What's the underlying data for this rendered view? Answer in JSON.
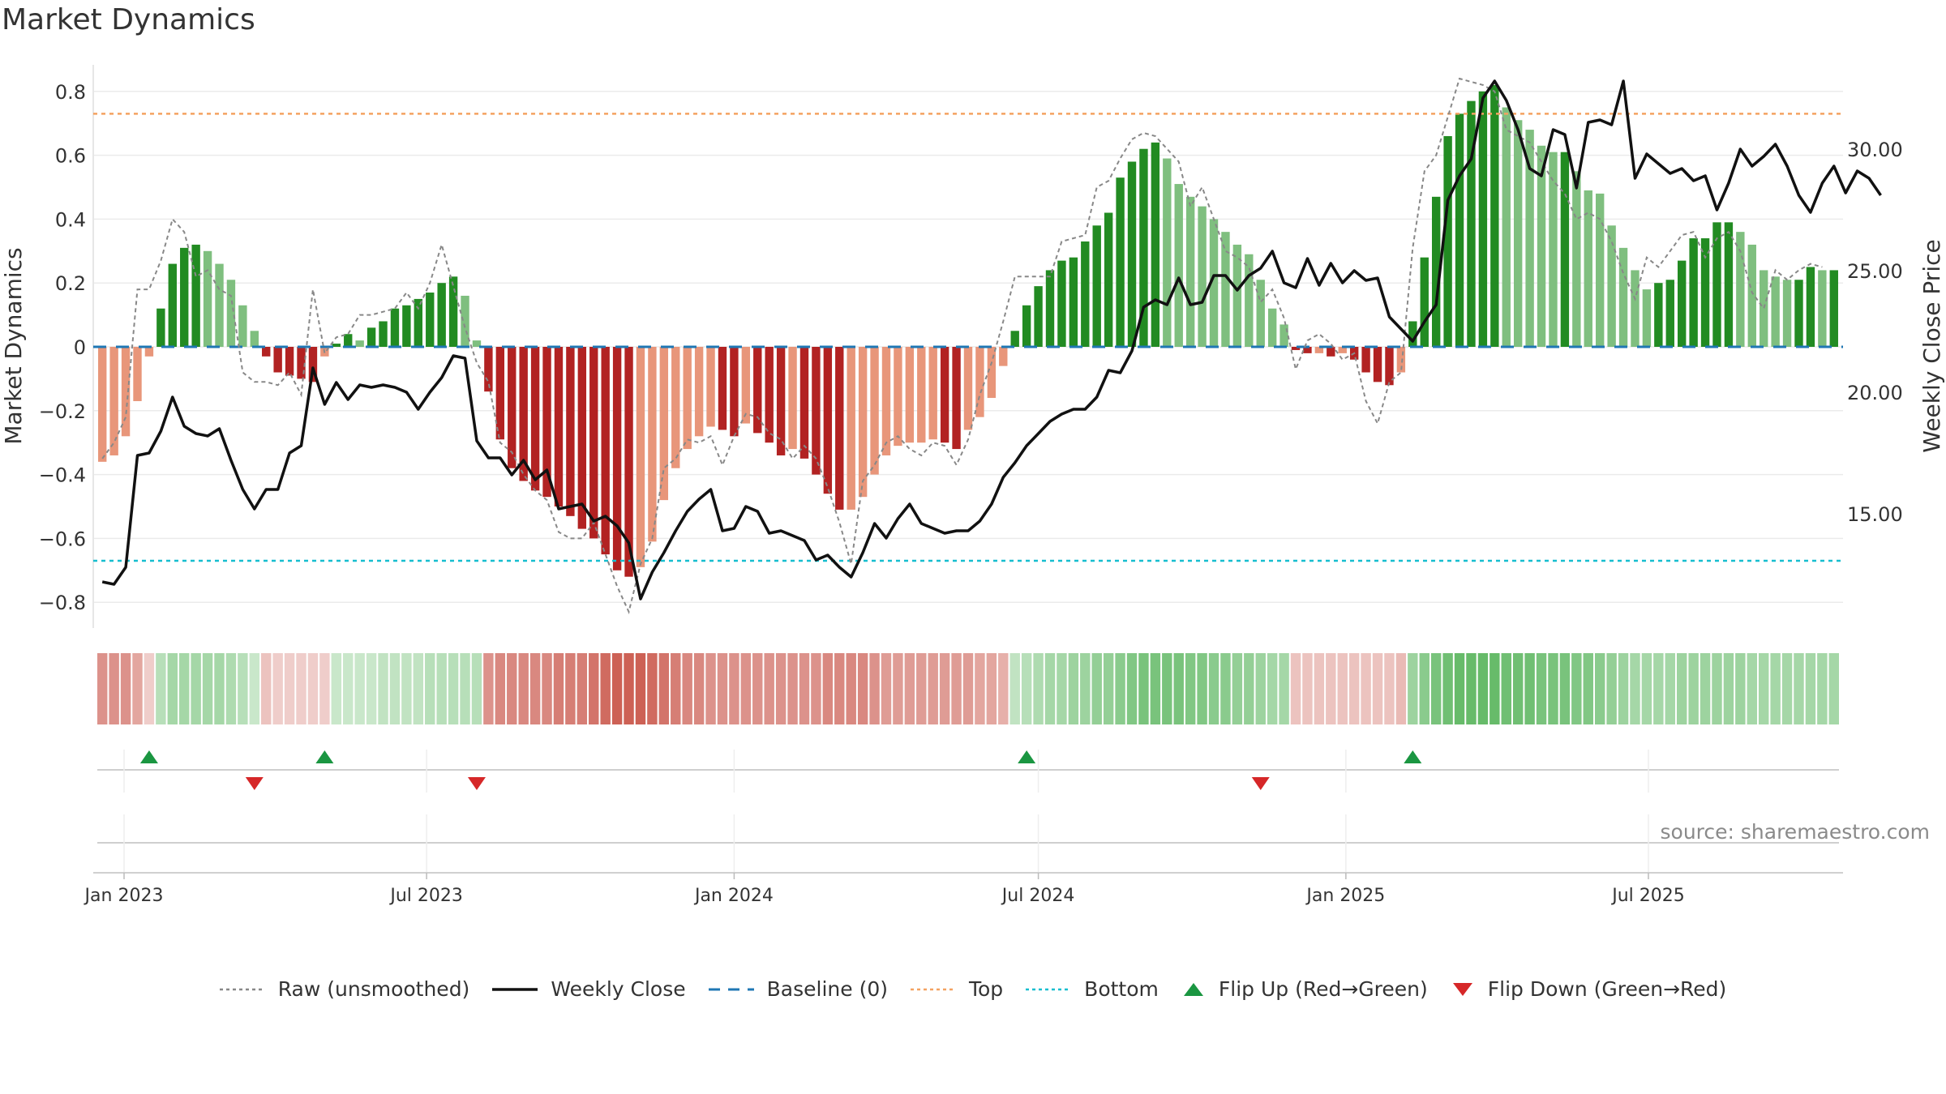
{
  "title": "Market Dynamics",
  "source": "source: sharemaestro.com",
  "colors": {
    "bull_strong": "#228b22",
    "bull_weak": "#7fbf7f",
    "bear_strong": "#b22222",
    "bear_weak": "#e8967a",
    "raw": "#888888",
    "close": "#111111",
    "baseline": "#1f77b4",
    "top": "#f4a261",
    "bottom": "#17becf",
    "flip_up": "#1a9641",
    "flip_down": "#d62728"
  },
  "legend": [
    {
      "label": "Raw (unsmoothed)",
      "icon": "dotted-grey-line"
    },
    {
      "label": "Weekly Close",
      "icon": "solid-black-line"
    },
    {
      "label": "Baseline (0)",
      "icon": "dashed-blue-line"
    },
    {
      "label": "Top",
      "icon": "dotted-orange-line"
    },
    {
      "label": "Bottom",
      "icon": "dotted-cyan-line"
    },
    {
      "label": "Flip Up (Red→Green)",
      "icon": "green-up-triangle"
    },
    {
      "label": "Flip Down (Green→Red)",
      "icon": "red-down-triangle"
    }
  ],
  "chart_data": {
    "type": "bar",
    "title": "Market Dynamics",
    "ylabel": "Market Dynamics",
    "y2label": "Weekly Close Price",
    "ylim": [
      -0.88,
      0.9
    ],
    "y2lim": [
      11.0,
      34.0
    ],
    "yticks": [
      "0.8",
      "0.6",
      "0.4",
      "0.2",
      "0",
      "−0.2",
      "−0.4",
      "−0.6",
      "−0.8"
    ],
    "y2ticks": [
      "30.00",
      "25.00",
      "20.00",
      "15.00"
    ],
    "xticks": [
      "Jan 2023",
      "Jul 2023",
      "Jan 2024",
      "Jul 2024",
      "Jan 2025",
      "Jul 2025"
    ],
    "xtick_dates": [
      "2023-01-01",
      "2023-07-01",
      "2024-01-01",
      "2024-07-01",
      "2025-01-01",
      "2025-07-01"
    ],
    "start_week": "2022-12-19",
    "top_level": 0.73,
    "bottom_level": -0.67,
    "baseline": 0,
    "grid": true,
    "legend_position": "bottom",
    "series": [
      {
        "name": "Market Dynamics",
        "values": [
          -0.36,
          -0.34,
          -0.28,
          -0.17,
          -0.03,
          0.12,
          0.26,
          0.31,
          0.32,
          0.3,
          0.26,
          0.21,
          0.13,
          0.05,
          -0.03,
          -0.08,
          -0.09,
          -0.1,
          -0.11,
          -0.03,
          0.01,
          0.04,
          0.02,
          0.06,
          0.08,
          0.12,
          0.13,
          0.15,
          0.17,
          0.2,
          0.22,
          0.16,
          0.02,
          -0.14,
          -0.29,
          -0.38,
          -0.42,
          -0.45,
          -0.47,
          -0.5,
          -0.53,
          -0.57,
          -0.6,
          -0.65,
          -0.7,
          -0.72,
          -0.69,
          -0.61,
          -0.48,
          -0.38,
          -0.32,
          -0.28,
          -0.25,
          -0.26,
          -0.28,
          -0.24,
          -0.27,
          -0.3,
          -0.34,
          -0.32,
          -0.35,
          -0.4,
          -0.46,
          -0.51,
          -0.51,
          -0.47,
          -0.4,
          -0.34,
          -0.31,
          -0.3,
          -0.3,
          -0.29,
          -0.3,
          -0.32,
          -0.26,
          -0.22,
          -0.16,
          -0.06,
          0.05,
          0.13,
          0.19,
          0.24,
          0.27,
          0.28,
          0.33,
          0.38,
          0.42,
          0.53,
          0.58,
          0.62,
          0.64,
          0.59,
          0.51,
          0.47,
          0.44,
          0.4,
          0.36,
          0.32,
          0.29,
          0.21,
          0.12,
          0.07,
          -0.01,
          -0.02,
          -0.02,
          -0.03,
          -0.02,
          -0.04,
          -0.08,
          -0.11,
          -0.12,
          -0.08,
          0.08,
          0.28,
          0.47,
          0.66,
          0.73,
          0.77,
          0.8,
          0.82,
          0.75,
          0.71,
          0.68,
          0.63,
          0.61,
          0.61,
          0.55,
          0.49,
          0.48,
          0.38,
          0.31,
          0.24,
          0.18,
          0.2,
          0.21,
          0.27,
          0.34,
          0.34,
          0.39,
          0.39,
          0.36,
          0.32,
          0.24,
          0.22,
          0.21,
          0.21,
          0.25,
          0.24,
          0.24
        ]
      },
      {
        "name": "Raw (unsmoothed)",
        "values": [
          -0.35,
          -0.3,
          -0.22,
          0.18,
          0.18,
          0.27,
          0.4,
          0.36,
          0.22,
          0.24,
          0.18,
          0.16,
          -0.08,
          -0.11,
          -0.11,
          -0.12,
          -0.08,
          -0.15,
          0.18,
          -0.02,
          0.03,
          0.04,
          0.1,
          0.1,
          0.11,
          0.12,
          0.17,
          0.12,
          0.2,
          0.32,
          0.19,
          0.06,
          -0.05,
          -0.11,
          -0.3,
          -0.33,
          -0.4,
          -0.45,
          -0.48,
          -0.58,
          -0.6,
          -0.6,
          -0.55,
          -0.65,
          -0.75,
          -0.83,
          -0.68,
          -0.6,
          -0.38,
          -0.35,
          -0.29,
          -0.3,
          -0.28,
          -0.37,
          -0.28,
          -0.21,
          -0.22,
          -0.27,
          -0.29,
          -0.35,
          -0.31,
          -0.35,
          -0.44,
          -0.55,
          -0.68,
          -0.42,
          -0.37,
          -0.3,
          -0.28,
          -0.32,
          -0.34,
          -0.3,
          -0.31,
          -0.37,
          -0.29,
          -0.15,
          -0.05,
          0.08,
          0.22,
          0.22,
          0.22,
          0.22,
          0.33,
          0.34,
          0.35,
          0.5,
          0.52,
          0.59,
          0.65,
          0.67,
          0.66,
          0.62,
          0.58,
          0.44,
          0.5,
          0.4,
          0.3,
          0.28,
          0.25,
          0.14,
          0.18,
          0.09,
          -0.07,
          0.02,
          0.04,
          0.01,
          -0.04,
          -0.02,
          -0.17,
          -0.24,
          -0.11,
          -0.08,
          0.31,
          0.55,
          0.6,
          0.72,
          0.84,
          0.83,
          0.82,
          0.8,
          0.68,
          0.66,
          0.64,
          0.58,
          0.52,
          0.48,
          0.4,
          0.42,
          0.4,
          0.33,
          0.23,
          0.15,
          0.28,
          0.25,
          0.3,
          0.35,
          0.36,
          0.28,
          0.34,
          0.36,
          0.3,
          0.17,
          0.12,
          0.24,
          0.21,
          0.24,
          0.26,
          0.25
        ]
      },
      {
        "name": "Weekly Close",
        "values": [
          12.2,
          12.1,
          12.8,
          17.4,
          17.5,
          18.4,
          19.8,
          18.6,
          18.3,
          18.2,
          18.5,
          17.2,
          16.0,
          15.2,
          16.0,
          16.0,
          17.5,
          17.8,
          21.0,
          19.5,
          20.4,
          19.7,
          20.3,
          20.2,
          20.3,
          20.2,
          20.0,
          19.3,
          20.0,
          20.6,
          21.5,
          21.4,
          18.0,
          17.3,
          17.3,
          16.6,
          17.2,
          16.4,
          16.8,
          15.2,
          15.3,
          15.4,
          14.7,
          14.9,
          14.5,
          13.8,
          11.5,
          12.6,
          13.4,
          14.3,
          15.1,
          15.6,
          16.0,
          14.3,
          14.4,
          15.3,
          15.1,
          14.2,
          14.3,
          14.1,
          13.9,
          13.1,
          13.3,
          12.8,
          12.4,
          13.4,
          14.6,
          14.0,
          14.8,
          15.4,
          14.6,
          14.4,
          14.2,
          14.3,
          14.3,
          14.7,
          15.4,
          16.5,
          17.1,
          17.8,
          18.3,
          18.8,
          19.1,
          19.3,
          19.3,
          19.8,
          20.9,
          20.8,
          21.7,
          23.5,
          23.8,
          23.6,
          24.7,
          23.6,
          23.7,
          24.8,
          24.8,
          24.2,
          24.8,
          25.1,
          25.8,
          24.5,
          24.3,
          25.5,
          24.4,
          25.3,
          24.5,
          25.0,
          24.6,
          24.7,
          23.1,
          22.6,
          22.1,
          22.9,
          23.6,
          27.9,
          28.9,
          29.6,
          32.1,
          32.8,
          32.0,
          30.8,
          29.2,
          28.9,
          30.8,
          30.6,
          28.4,
          31.1,
          31.2,
          31.0,
          32.8,
          28.8,
          29.8,
          29.4,
          29.0,
          29.2,
          28.7,
          28.9,
          27.5,
          28.6,
          30.0,
          29.3,
          29.7,
          30.2,
          29.3,
          28.1,
          27.4,
          28.6,
          29.3,
          28.2,
          29.1,
          28.8,
          28.1
        ]
      }
    ],
    "strip_intensity": [
      0.55,
      0.55,
      0.55,
      0.45,
      0.25,
      0.4,
      0.5,
      0.5,
      0.5,
      0.5,
      0.5,
      0.45,
      0.4,
      0.3,
      0.3,
      0.25,
      0.25,
      0.25,
      0.25,
      0.25,
      0.3,
      0.3,
      0.3,
      0.3,
      0.35,
      0.35,
      0.35,
      0.35,
      0.4,
      0.4,
      0.4,
      0.4,
      0.4,
      0.55,
      0.6,
      0.6,
      0.6,
      0.6,
      0.6,
      0.65,
      0.65,
      0.65,
      0.7,
      0.75,
      0.8,
      0.8,
      0.8,
      0.75,
      0.7,
      0.65,
      0.6,
      0.6,
      0.55,
      0.55,
      0.55,
      0.55,
      0.55,
      0.55,
      0.55,
      0.55,
      0.55,
      0.55,
      0.6,
      0.6,
      0.6,
      0.6,
      0.55,
      0.5,
      0.5,
      0.5,
      0.5,
      0.5,
      0.5,
      0.5,
      0.5,
      0.45,
      0.45,
      0.4,
      0.35,
      0.4,
      0.45,
      0.5,
      0.5,
      0.55,
      0.55,
      0.6,
      0.6,
      0.65,
      0.7,
      0.75,
      0.75,
      0.75,
      0.75,
      0.7,
      0.7,
      0.65,
      0.65,
      0.6,
      0.6,
      0.55,
      0.5,
      0.5,
      0.3,
      0.3,
      0.3,
      0.3,
      0.3,
      0.3,
      0.3,
      0.3,
      0.3,
      0.35,
      0.55,
      0.65,
      0.75,
      0.8,
      0.85,
      0.85,
      0.85,
      0.85,
      0.8,
      0.8,
      0.8,
      0.75,
      0.75,
      0.75,
      0.7,
      0.7,
      0.65,
      0.6,
      0.55,
      0.5,
      0.5,
      0.5,
      0.5,
      0.55,
      0.55,
      0.55,
      0.55,
      0.55,
      0.55,
      0.5,
      0.5,
      0.5,
      0.5,
      0.5,
      0.5,
      0.5,
      0.5
    ],
    "flip_up_weeks": [
      4,
      19,
      79,
      112
    ],
    "flip_down_weeks": [
      13,
      32,
      99
    ]
  }
}
